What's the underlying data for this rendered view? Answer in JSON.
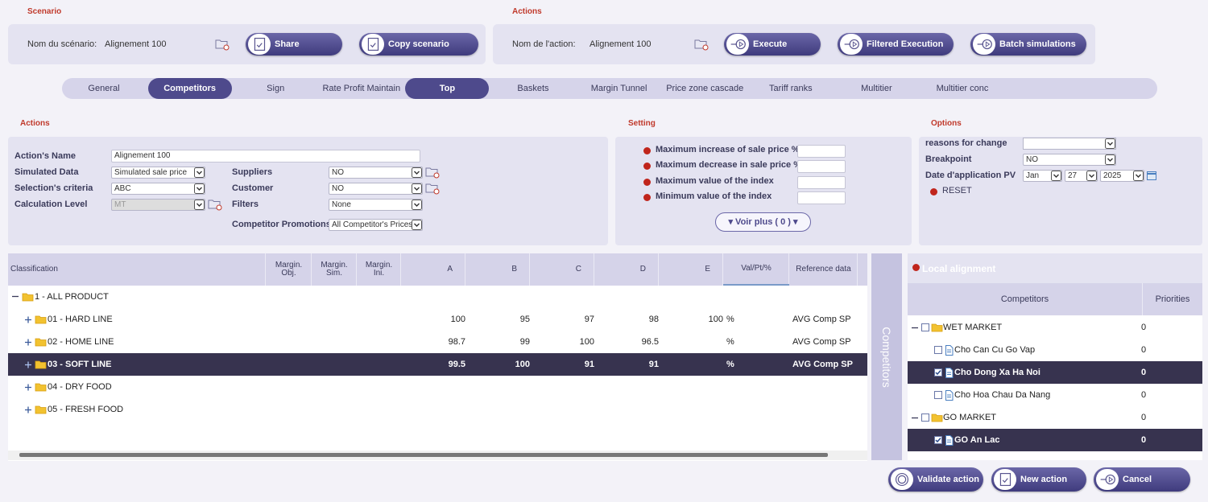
{
  "scenario": {
    "title": "Scenario",
    "name_label": "Nom du scénario:",
    "name": "Alignement 100",
    "buttons": [
      "Share",
      "Copy scenario"
    ]
  },
  "action_bar": {
    "title": "Actions",
    "name_label": "Nom de l'action:",
    "name": "Alignement 100",
    "buttons": [
      "Execute",
      "Filtered Execution",
      "Batch simulations"
    ]
  },
  "tabs": [
    {
      "label": "General"
    },
    {
      "label": "Competitors",
      "active": true
    },
    {
      "label": "Sign"
    },
    {
      "label": "Rate Profit Maintain"
    },
    {
      "label": "Top",
      "active": true
    },
    {
      "label": "Baskets"
    },
    {
      "label": "Margin Tunnel"
    },
    {
      "label": "Price zone cascade"
    },
    {
      "label": "Tariff ranks"
    },
    {
      "label": "Multitier"
    },
    {
      "label": "Multitier conc"
    }
  ],
  "actions": {
    "title": "Actions",
    "name_field": {
      "label": "Action's Name",
      "value": "Alignement 100"
    },
    "fields": [
      {
        "label": "Simulated Data",
        "value": "Simulated sale price"
      },
      {
        "label": "Selection's criteria",
        "value": "ABC"
      },
      {
        "label": "Calculation Level",
        "value": "MT",
        "disabled": true
      }
    ],
    "fields2": [
      {
        "label": "Suppliers",
        "value": "NO"
      },
      {
        "label": "Customer",
        "value": "NO"
      },
      {
        "label": "Filters",
        "value": "None"
      },
      {
        "label": "Competitor Promotions",
        "value": "All Competitor's Prices"
      }
    ]
  },
  "setting": {
    "title": "Setting",
    "items": [
      "Maximum increase of sale price %",
      "Maximum decrease in sale price %",
      "Maximum value of the index",
      "Minimum value of the index"
    ],
    "more": "▾ Voir plus ( 0 ) ▾"
  },
  "options": {
    "title": "Options",
    "reasons_label": "reasons for change",
    "breakpoint": {
      "label": "Breakpoint",
      "value": "NO"
    },
    "date": {
      "label": "Date d'application PV",
      "parts": [
        "Jan",
        "27",
        "2025"
      ]
    },
    "reset": "RESET"
  },
  "table": {
    "columns": [
      "Classification",
      "Margin. Obj.",
      "Margin. Sim.",
      "Margin. Ini.",
      "A",
      "B",
      "C",
      "D",
      "E",
      "Val/Pt/%",
      "Reference data"
    ],
    "root": {
      "label": "1 - ALL PRODUCT",
      "children": [
        {
          "label": "01 - HARD LINE",
          "cells": [
            null,
            null,
            null,
            100,
            95,
            97,
            98,
            100,
            "%",
            "AVG Comp SP"
          ]
        },
        {
          "label": "02 - HOME LINE",
          "cells": [
            null,
            null,
            null,
            98.7,
            99,
            100,
            96.5,
            null,
            "%",
            "AVG Comp SP"
          ]
        },
        {
          "label": "03 - SOFT LINE",
          "selected": true,
          "cells": [
            null,
            null,
            null,
            99.5,
            100,
            91,
            91,
            null,
            "%",
            "AVG Comp SP"
          ]
        },
        {
          "label": "04 - DRY FOOD"
        },
        {
          "label": "05 - FRESH FOOD"
        }
      ]
    }
  },
  "side_tab": "Competitors",
  "local": {
    "title": "Local alignment",
    "columns": [
      "Competitors",
      "Priorities"
    ],
    "rows": [
      {
        "label": "WET MARKET",
        "priority": 0,
        "group": true
      },
      {
        "label": "Cho Can Cu Go Vap",
        "priority": 0
      },
      {
        "label": "Cho Dong Xa Ha Noi",
        "priority": 0,
        "selected": true
      },
      {
        "label": "Cho Hoa Chau Da Nang",
        "priority": 0
      },
      {
        "label": "GO MARKET",
        "priority": 0,
        "group": true
      },
      {
        "label": "GO An Lac",
        "priority": 0,
        "selected": true
      }
    ]
  },
  "footer": {
    "buttons": [
      "Validate action",
      "New action",
      "Cancel"
    ]
  }
}
